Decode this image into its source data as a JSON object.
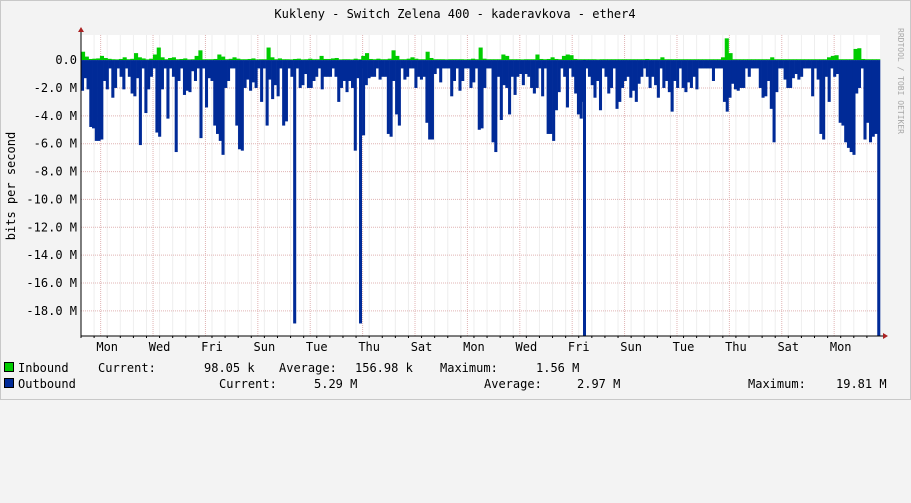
{
  "chart_data": {
    "type": "area",
    "title": "Kukleny - Switch Zelena 400 - kaderavkova - ether4",
    "ylabel": "bits per second",
    "watermark": "RRDTOOL / TOBI OETIKER",
    "y_ticks": [
      "0.0",
      "-2.0 M",
      "-4.0 M",
      "-6.0 M",
      "-8.0 M",
      "-10.0 M",
      "-12.0 M",
      "-14.0 M",
      "-16.0 M",
      "-18.0 M"
    ],
    "y_tick_values": [
      0,
      -2000000,
      -4000000,
      -6000000,
      -8000000,
      -10000000,
      -12000000,
      -14000000,
      -16000000,
      -18000000
    ],
    "ylim": [
      -19800000,
      1800000
    ],
    "x_labels": [
      "Mon",
      "Wed",
      "Fri",
      "Sun",
      "Tue",
      "Thu",
      "Sat",
      "Mon",
      "Wed",
      "Fri",
      "Sun",
      "Tue",
      "Thu",
      "Sat",
      "Mon"
    ],
    "x_label_days": [
      1,
      3,
      5,
      7,
      9,
      11,
      13,
      15,
      17,
      19,
      21,
      23,
      25,
      27,
      29
    ],
    "x_range_days": [
      0,
      30.5
    ],
    "grid": true,
    "colors": {
      "inbound": "#00cc00",
      "outbound": "#002a97",
      "grid": "#e0b4b4",
      "axis": "#000000",
      "arrow": "#aa2222"
    },
    "series": [
      {
        "name": "Inbound",
        "color": "#00cc00",
        "values": [
          600000,
          250000,
          80000,
          100000,
          120000,
          300000,
          150000,
          90000,
          60000,
          50000,
          80000,
          200000,
          60000,
          90000,
          500000,
          200000,
          120000,
          50000,
          100000,
          400000,
          900000,
          200000,
          60000,
          150000,
          200000,
          60000,
          80000,
          120000,
          50000,
          60000,
          300000,
          700000,
          60000,
          60000,
          60000,
          80000,
          400000,
          250000,
          60000,
          90000,
          200000,
          100000,
          60000,
          60000,
          80000,
          120000,
          50000,
          60000,
          60000,
          900000,
          200000,
          60000,
          120000,
          60000,
          60000,
          50000,
          80000,
          100000,
          50000,
          60000,
          100000,
          60000,
          60000,
          300000,
          80000,
          80000,
          120000,
          150000,
          50000,
          60000,
          60000,
          50000,
          100000,
          60000,
          300000,
          500000,
          80000,
          60000,
          100000,
          60000,
          60000,
          100000,
          700000,
          300000,
          60000,
          60000,
          100000,
          200000,
          100000,
          60000,
          60000,
          600000,
          150000,
          60000,
          60000,
          60000,
          50000,
          60000,
          60000,
          60000,
          60000,
          50000,
          60000,
          100000,
          60000,
          900000,
          100000,
          60000,
          60000,
          60000,
          60000,
          400000,
          300000,
          60000,
          60000,
          60000,
          50000,
          60000,
          60000,
          60000,
          400000,
          80000,
          60000,
          80000,
          200000,
          80000,
          60000,
          300000,
          400000,
          350000,
          80000,
          60000,
          60000,
          60000,
          60000,
          60000,
          50000,
          60000,
          60000,
          60000,
          60000,
          60000,
          60000,
          60000,
          60000,
          60000,
          60000,
          60000,
          60000,
          80000,
          60000,
          60000,
          60000,
          200000,
          60000,
          60000,
          60000,
          60000,
          60000,
          60000,
          60000,
          60000,
          60000,
          60000,
          60000,
          60000,
          60000,
          60000,
          60000,
          200000,
          1560000,
          500000,
          60000,
          60000,
          60000,
          60000,
          60000,
          60000,
          60000,
          60000,
          60000,
          60000,
          200000,
          60000,
          60000,
          60000,
          60000,
          60000,
          60000,
          60000,
          60000,
          60000,
          60000,
          60000,
          60000,
          60000,
          60000,
          200000,
          300000,
          350000,
          60000,
          60000,
          60000,
          60000,
          800000,
          850000,
          80000,
          60000,
          60000,
          60000,
          60000
        ]
      },
      {
        "name": "Outbound",
        "color": "#002a97",
        "values": [
          -2200000,
          -1300000,
          -2100000,
          -4800000,
          -4900000,
          -5800000,
          -5800000,
          -5700000,
          -1500000,
          -2100000,
          -600000,
          -2700000,
          -2000000,
          -600000,
          -1200000,
          -2100000,
          -600000,
          -1200000,
          -2400000,
          -2600000,
          -1300000,
          -6100000,
          -600000,
          -3800000,
          -2100000,
          -1200000,
          -600000,
          -5200000,
          -5500000,
          -2100000,
          -600000,
          -4200000,
          -600000,
          -1200000,
          -6600000,
          -1500000,
          -600000,
          -2500000,
          -2200000,
          -2300000,
          -800000,
          -1500000,
          -600000,
          -5600000,
          -600000,
          -3400000,
          -1300000,
          -1500000,
          -4700000,
          -5300000,
          -5800000,
          -6800000,
          -2000000,
          -1500000,
          -600000,
          -600000,
          -4700000,
          -6400000,
          -6500000,
          -2000000,
          -1400000,
          -2200000,
          -1600000,
          -2000000,
          -600000,
          -3000000,
          -600000,
          -4700000,
          -1400000,
          -2800000,
          -1800000,
          -2600000,
          -600000,
          -4700000,
          -4400000,
          -600000,
          -1200000,
          -18900000,
          -600000,
          -2000000,
          -1800000,
          -1000000,
          -2000000,
          -2000000,
          -1500000,
          -1200000,
          -600000,
          -2100000,
          -1200000,
          -1200000,
          -1200000,
          -600000,
          -1200000,
          -3000000,
          -2000000,
          -1500000,
          -2300000,
          -1500000,
          -2000000,
          -6500000,
          -1300000,
          -600000,
          -5400000,
          -1800000,
          -1300000,
          -1200000,
          -1200000,
          -600000,
          -1400000,
          -1200000,
          -1200000,
          -5300000,
          -5500000,
          -1500000,
          -3900000,
          -4700000,
          -600000,
          -1400000,
          -1200000,
          -600000,
          -600000,
          -2000000,
          -1200000,
          -1400000,
          -1200000,
          -4500000,
          -5700000,
          -5700000,
          -1000000,
          -600000,
          -1600000,
          -600000,
          -600000,
          -600000,
          -2600000,
          -1500000,
          -600000,
          -2200000,
          -1500000,
          -600000,
          -600000,
          -2000000,
          -1600000,
          -600000,
          -5000000,
          -4900000,
          -2000000,
          -600000,
          -600000,
          -5900000,
          -6600000,
          -1200000,
          -4300000,
          -1800000,
          -2000000,
          -3900000,
          -1200000,
          -2500000,
          -1200000,
          -1000000,
          -1800000,
          -1000000,
          -1200000,
          -2000000,
          -2400000,
          -2000000,
          -600000,
          -2600000,
          -600000,
          -5300000,
          -5300000,
          -5800000,
          -3600000,
          -2300000,
          -600000,
          -1200000,
          -3400000,
          -600000,
          -1200000,
          -2400000,
          -3900000,
          -4200000,
          -3000000,
          -600000,
          -1200000,
          -1800000,
          -2700000,
          -1500000,
          -3600000,
          -600000,
          -1200000,
          -2400000,
          -2000000,
          -600000,
          -3500000,
          -3000000,
          -2000000,
          -1500000,
          -1200000,
          -2700000,
          -2200000,
          -3000000,
          -1700000,
          -1200000,
          -600000,
          -1200000,
          -2000000,
          -1200000,
          -1800000,
          -2700000,
          -600000,
          -2000000,
          -1500000,
          -2300000,
          -3700000,
          -1500000,
          -2000000,
          -600000,
          -2000000,
          -2300000,
          -1600000,
          -2000000,
          -1200000,
          -2100000,
          -600000,
          -600000,
          -600000,
          -600000,
          -600000,
          -1500000,
          -600000,
          -600000,
          -600000,
          -3000000,
          -3700000,
          -2700000,
          -1700000,
          -2100000,
          -2200000,
          -2000000,
          -2000000,
          -600000,
          -1200000,
          -600000,
          -600000,
          -600000,
          -2000000,
          -2700000,
          -2600000,
          -1500000,
          -3500000,
          -5900000,
          -2300000,
          -600000,
          -600000,
          -1400000,
          -2000000,
          -2000000,
          -1300000,
          -1000000,
          -1400000,
          -1200000,
          -600000,
          -600000,
          -600000,
          -2600000,
          -600000,
          -1400000,
          -5300000,
          -5700000,
          -1200000,
          -3000000,
          -600000,
          -1200000,
          -1000000,
          -4500000,
          -4700000,
          -5900000,
          -6300000,
          -6600000,
          -6800000,
          -2400000,
          -2000000,
          -600000,
          -5700000,
          -4500000,
          -5900000,
          -5500000,
          -5300000,
          -19810000
        ]
      }
    ],
    "spikes": [
      {
        "series": "Outbound",
        "day": 10.67,
        "value": -18900000
      },
      {
        "series": "Outbound",
        "day": 19.22,
        "value": -19810000
      }
    ],
    "legend": [
      {
        "name": "Inbound",
        "current": "98.05 k",
        "average": "156.98 k",
        "maximum": "1.56 M"
      },
      {
        "name": "Outbound",
        "current": "5.29 M",
        "average": "2.97 M",
        "maximum": "19.81 M"
      }
    ],
    "legend_labels": {
      "current": "Current:",
      "average": "Average:",
      "maximum": "Maximum:"
    }
  }
}
